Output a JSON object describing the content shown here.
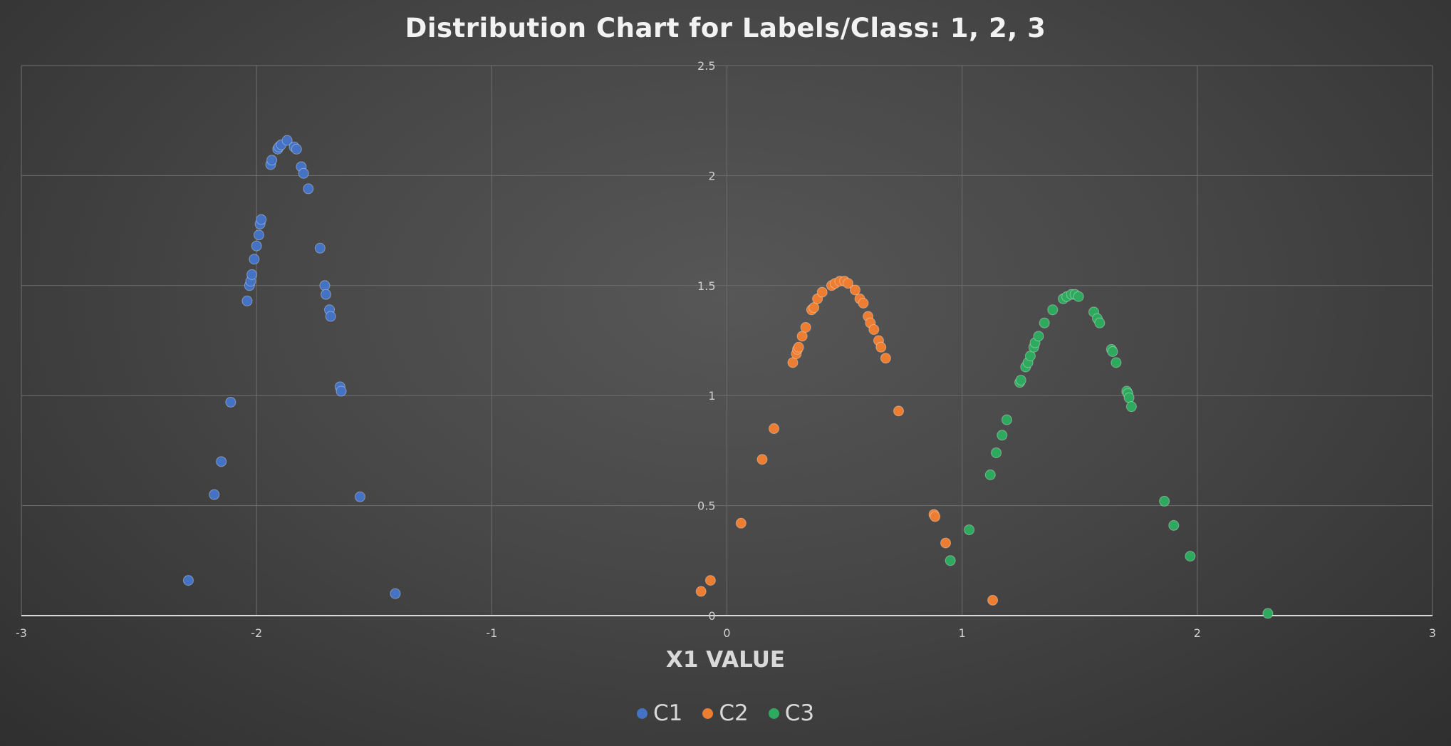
{
  "chart_data": {
    "type": "scatter",
    "title": "Distribution Chart for Labels/Class: 1, 2, 3",
    "xlabel": "X1 VALUE",
    "ylabel": "",
    "xlim": [
      -3,
      3
    ],
    "ylim": [
      0,
      2.5
    ],
    "x_ticks": [
      "-3",
      "-2",
      "-1",
      "0",
      "1",
      "2",
      "3"
    ],
    "y_ticks": [
      "0",
      "0.5",
      "1",
      "1.5",
      "2",
      "2.5"
    ],
    "grid": true,
    "legend_position": "bottom",
    "series": [
      {
        "name": "C1",
        "color": "#4472c4",
        "points": [
          [
            -2.29,
            0.16
          ],
          [
            -2.18,
            0.55
          ],
          [
            -2.15,
            0.7
          ],
          [
            -2.11,
            0.97
          ],
          [
            -2.04,
            1.43
          ],
          [
            -2.03,
            1.5
          ],
          [
            -2.025,
            1.52
          ],
          [
            -2.02,
            1.55
          ],
          [
            -2.01,
            1.62
          ],
          [
            -2.0,
            1.68
          ],
          [
            -1.99,
            1.73
          ],
          [
            -1.985,
            1.78
          ],
          [
            -1.98,
            1.8
          ],
          [
            -1.94,
            2.05
          ],
          [
            -1.935,
            2.07
          ],
          [
            -1.91,
            2.12
          ],
          [
            -1.905,
            2.13
          ],
          [
            -1.895,
            2.14
          ],
          [
            -1.87,
            2.16
          ],
          [
            -1.84,
            2.13
          ],
          [
            -1.83,
            2.12
          ],
          [
            -1.81,
            2.04
          ],
          [
            -1.8,
            2.01
          ],
          [
            -1.78,
            1.94
          ],
          [
            -1.73,
            1.67
          ],
          [
            -1.71,
            1.5
          ],
          [
            -1.705,
            1.46
          ],
          [
            -1.69,
            1.39
          ],
          [
            -1.685,
            1.36
          ],
          [
            -1.645,
            1.04
          ],
          [
            -1.64,
            1.02
          ],
          [
            -1.56,
            0.54
          ],
          [
            -1.41,
            0.1
          ]
        ]
      },
      {
        "name": "C2",
        "color": "#ed7d31",
        "points": [
          [
            -0.11,
            0.11
          ],
          [
            -0.07,
            0.16
          ],
          [
            0.06,
            0.42
          ],
          [
            0.15,
            0.71
          ],
          [
            0.2,
            0.85
          ],
          [
            0.28,
            1.15
          ],
          [
            0.295,
            1.19
          ],
          [
            0.3,
            1.21
          ],
          [
            0.305,
            1.22
          ],
          [
            0.32,
            1.27
          ],
          [
            0.335,
            1.31
          ],
          [
            0.36,
            1.39
          ],
          [
            0.37,
            1.4
          ],
          [
            0.385,
            1.44
          ],
          [
            0.405,
            1.47
          ],
          [
            0.445,
            1.5
          ],
          [
            0.46,
            1.51
          ],
          [
            0.48,
            1.52
          ],
          [
            0.5,
            1.52
          ],
          [
            0.515,
            1.51
          ],
          [
            0.545,
            1.48
          ],
          [
            0.565,
            1.44
          ],
          [
            0.58,
            1.42
          ],
          [
            0.6,
            1.36
          ],
          [
            0.61,
            1.33
          ],
          [
            0.625,
            1.3
          ],
          [
            0.645,
            1.25
          ],
          [
            0.655,
            1.22
          ],
          [
            0.675,
            1.17
          ],
          [
            0.73,
            0.93
          ],
          [
            0.88,
            0.46
          ],
          [
            0.885,
            0.45
          ],
          [
            0.93,
            0.33
          ],
          [
            1.13,
            0.07
          ]
        ]
      },
      {
        "name": "C3",
        "color": "#2eaa5e",
        "points": [
          [
            0.95,
            0.25
          ],
          [
            1.03,
            0.39
          ],
          [
            1.12,
            0.64
          ],
          [
            1.145,
            0.74
          ],
          [
            1.17,
            0.82
          ],
          [
            1.19,
            0.89
          ],
          [
            1.245,
            1.06
          ],
          [
            1.25,
            1.07
          ],
          [
            1.27,
            1.13
          ],
          [
            1.28,
            1.15
          ],
          [
            1.29,
            1.18
          ],
          [
            1.305,
            1.22
          ],
          [
            1.31,
            1.24
          ],
          [
            1.325,
            1.27
          ],
          [
            1.35,
            1.33
          ],
          [
            1.385,
            1.39
          ],
          [
            1.43,
            1.44
          ],
          [
            1.445,
            1.45
          ],
          [
            1.465,
            1.46
          ],
          [
            1.48,
            1.46
          ],
          [
            1.495,
            1.45
          ],
          [
            1.56,
            1.38
          ],
          [
            1.575,
            1.35
          ],
          [
            1.585,
            1.33
          ],
          [
            1.635,
            1.21
          ],
          [
            1.64,
            1.2
          ],
          [
            1.655,
            1.15
          ],
          [
            1.7,
            1.02
          ],
          [
            1.705,
            1.01
          ],
          [
            1.71,
            0.99
          ],
          [
            1.72,
            0.95
          ],
          [
            1.86,
            0.52
          ],
          [
            1.9,
            0.41
          ],
          [
            1.97,
            0.27
          ],
          [
            2.3,
            0.01
          ]
        ]
      }
    ]
  }
}
